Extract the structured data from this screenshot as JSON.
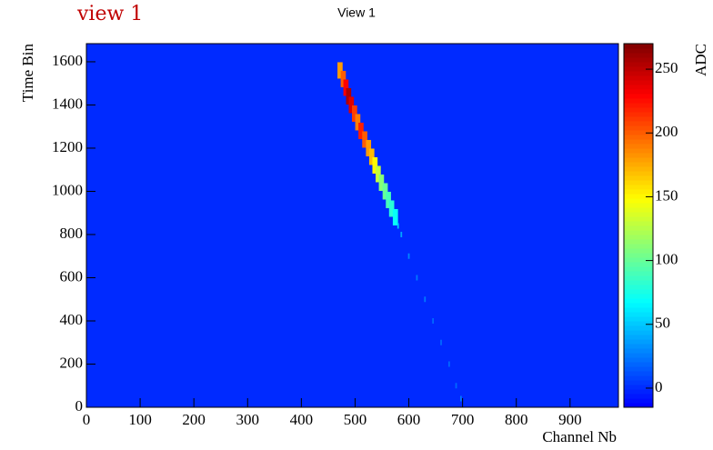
{
  "chart_data": {
    "type": "heatmap",
    "annotation": "view 1",
    "title": "View 1",
    "x_label": "Channel Nb",
    "y_label": "Time Bin",
    "colorbar_label": "ADC",
    "xlim": [
      0,
      990
    ],
    "xticks": [
      0,
      100,
      200,
      300,
      400,
      500,
      600,
      700,
      800,
      900
    ],
    "ylim": [
      0,
      1684
    ],
    "yticks": [
      0,
      200,
      400,
      600,
      800,
      1000,
      1200,
      1400,
      1600
    ],
    "zlim": [
      -15,
      270
    ],
    "zticks": [
      0,
      50,
      100,
      150,
      200,
      250
    ],
    "x": [
      472,
      478,
      483,
      488,
      493,
      499,
      505,
      511,
      518,
      525,
      531,
      537,
      543,
      549,
      556,
      562,
      568,
      575,
      580,
      586,
      600,
      615,
      630,
      645,
      660,
      675,
      688,
      697
    ],
    "y": [
      1560,
      1520,
      1480,
      1440,
      1400,
      1360,
      1320,
      1280,
      1240,
      1200,
      1160,
      1120,
      1080,
      1040,
      1000,
      960,
      920,
      880,
      840,
      800,
      700,
      600,
      500,
      400,
      300,
      200,
      100,
      40
    ],
    "values": [
      180,
      200,
      230,
      255,
      240,
      210,
      190,
      220,
      200,
      180,
      170,
      150,
      130,
      110,
      100,
      90,
      80,
      70,
      50,
      40,
      30,
      25,
      25,
      20,
      20,
      20,
      20,
      25
    ]
  }
}
